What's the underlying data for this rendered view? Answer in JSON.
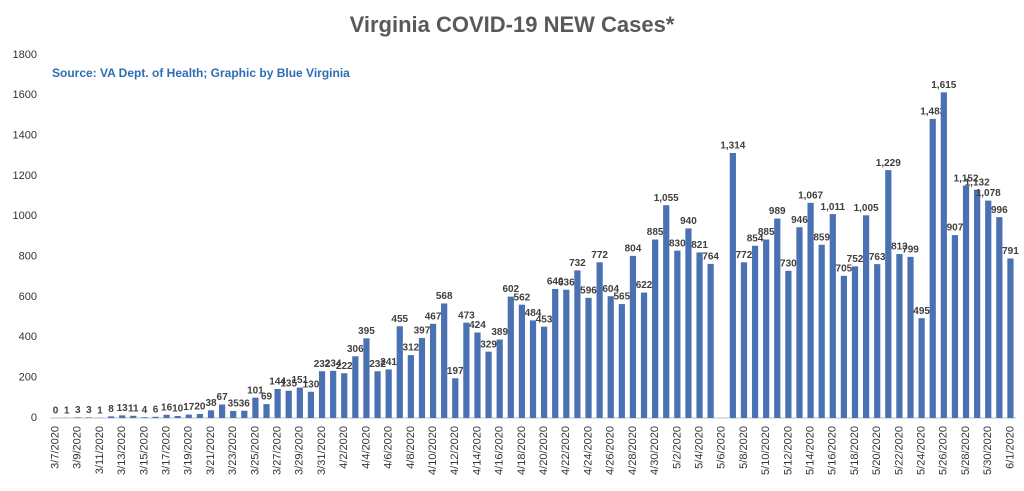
{
  "chart_data": {
    "type": "bar",
    "title": "Virginia COVID-19 NEW Cases*",
    "subtitle": "Source: VA Dept. of Health; Graphic by Blue Virginia",
    "categories": [
      "3/7/2020",
      null,
      "3/9/2020",
      null,
      "3/11/2020",
      null,
      "3/13/2020",
      null,
      "3/15/2020",
      null,
      "3/17/2020",
      null,
      "3/19/2020",
      null,
      "3/21/2020",
      null,
      "3/23/2020",
      null,
      "3/25/2020",
      null,
      "3/27/2020",
      null,
      "3/29/2020",
      null,
      "3/31/2020",
      null,
      "4/2/2020",
      null,
      "4/4/2020",
      null,
      "4/6/2020",
      null,
      "4/8/2020",
      null,
      "4/10/2020",
      null,
      "4/12/2020",
      null,
      "4/14/2020",
      null,
      "4/16/2020",
      null,
      "4/18/2020",
      null,
      "4/20/2020",
      null,
      "4/22/2020",
      null,
      "4/24/2020",
      null,
      "4/26/2020",
      null,
      "4/28/2020",
      null,
      "4/30/2020",
      null,
      "5/2/2020",
      null,
      "5/4/2020",
      null,
      "5/6/2020",
      null,
      "5/8/2020",
      null,
      "5/10/2020",
      null,
      "5/12/2020",
      null,
      "5/14/2020",
      null,
      "5/16/2020",
      null,
      "5/18/2020",
      null,
      "5/20/2020",
      null,
      "5/22/2020",
      null,
      "5/24/2020",
      null,
      "5/26/2020",
      null,
      "5/28/2020",
      null,
      "5/30/2020",
      null,
      "6/1/2020"
    ],
    "values": [
      0,
      1,
      3,
      3,
      1,
      8,
      13,
      11,
      4,
      6,
      16,
      10,
      17,
      20,
      38,
      67,
      35,
      36,
      101,
      69,
      144,
      135,
      151,
      130,
      232,
      234,
      222,
      306,
      395,
      232,
      241,
      455,
      312,
      397,
      467,
      568,
      197,
      473,
      424,
      329,
      389,
      602,
      562,
      484,
      453,
      640,
      636,
      732,
      596,
      772,
      604,
      565,
      804,
      622,
      885,
      1055,
      830,
      940,
      821,
      764,
      null,
      1314,
      772,
      854,
      885,
      989,
      730,
      946,
      1067,
      859,
      1011,
      705,
      752,
      1005,
      763,
      1229,
      813,
      799,
      495,
      1483,
      1615,
      907,
      1152,
      1132,
      1078,
      996,
      791
    ],
    "value_labels": [
      "0",
      "1",
      "3",
      "3",
      "1",
      "8",
      "13",
      "11",
      "4",
      "6",
      "16",
      "10",
      "17",
      "20",
      "38",
      "67",
      "35",
      "36",
      "101",
      "69",
      "144",
      "135",
      "151",
      "130",
      "232",
      "234",
      "222",
      "306",
      "395",
      "232",
      "241",
      "455",
      "312",
      "397",
      "467",
      "568",
      "197",
      "473",
      "424",
      "329",
      "389",
      "602",
      "562",
      "484",
      "453",
      "640",
      "636",
      "732",
      "596",
      "772",
      "604",
      "565",
      "804",
      "622",
      "885",
      "1,055",
      "830",
      "940",
      "821",
      "764",
      null,
      "1,314",
      "772",
      "854",
      "885",
      "989",
      "730",
      "946",
      "1,067",
      "859",
      "1,011",
      "705",
      "752",
      "1,005",
      "763",
      "1,229",
      "813",
      "799",
      "495",
      "1,483",
      "1,615",
      "907",
      "1,152",
      "1,132",
      "1,078",
      "996",
      "791"
    ],
    "color": "#4a72b2",
    "ylim": [
      0,
      1800
    ],
    "yticks": [
      0,
      200,
      400,
      600,
      800,
      1000,
      1200,
      1400,
      1600,
      1800
    ],
    "grid": false
  }
}
